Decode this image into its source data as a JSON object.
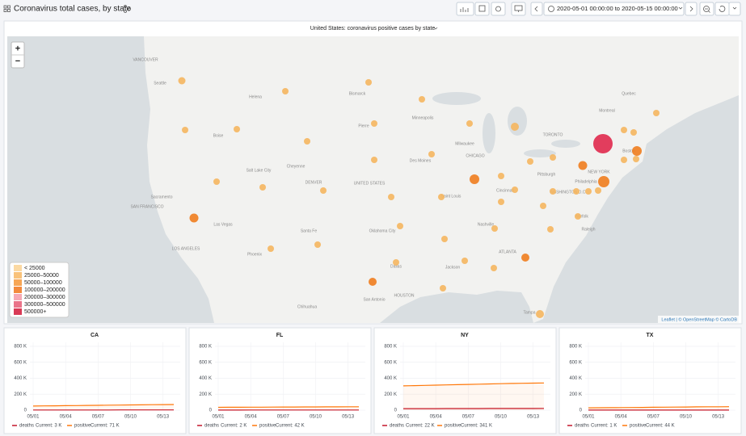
{
  "header": {
    "title": "Coronavirus total cases, by state",
    "time_range": "2020-05-01 00:00:00 to 2020-05-15 00:00:00"
  },
  "map": {
    "title": "United States: coronavirus positive cases by state",
    "zoom_in": "+",
    "zoom_out": "−",
    "attribution": "Leaflet | © OpenStreetMap © CartoDB",
    "labels": [
      "VANCOUVER",
      "Seattle",
      "Helena",
      "Bismarck",
      "Pierre",
      "Minneapolis",
      "Boise",
      "Salt Lake City",
      "Cheyenne",
      "DENVER",
      "UNITED STATES",
      "Des Moines",
      "Milwaukee",
      "CHICAGO",
      "TORONTO",
      "Montreal",
      "Quebec",
      "Boston",
      "NEW YORK",
      "Philadelphia",
      "Pittsburgh",
      "WASHINGTON D.C.",
      "Cincinnati",
      "Saint Louis",
      "Sacramento",
      "SAN FRANCISCO",
      "Las Vegas",
      "LOS ANGELES",
      "Santa Fe",
      "Oklahoma City",
      "Nashville",
      "Norfolk",
      "Raleigh",
      "ATLANTA",
      "Phoenix",
      "Dallas",
      "Jackson",
      "HOUSTON",
      "San Antonio",
      "Chihuahua",
      "Tampa"
    ],
    "legend": [
      {
        "label": "< 25000",
        "color": "#fbd9a3"
      },
      {
        "label": "25000–50000",
        "color": "#f9c27a"
      },
      {
        "label": "50000–100000",
        "color": "#f7a655"
      },
      {
        "label": "100000–200000",
        "color": "#f38a3d"
      },
      {
        "label": "200000–300000",
        "color": "#f6a9b5"
      },
      {
        "label": "300000–500000",
        "color": "#ea7389"
      },
      {
        "label": "500000+",
        "color": "#d93a55"
      }
    ]
  },
  "chart_data": [
    {
      "type": "line",
      "title": "CA",
      "x": [
        "05/01",
        "05/02",
        "05/03",
        "05/04",
        "05/05",
        "05/06",
        "05/07",
        "05/08",
        "05/09",
        "05/10",
        "05/11",
        "05/12",
        "05/13",
        "05/14"
      ],
      "xticks": [
        "05/01",
        "05/04",
        "05/07",
        "05/10",
        "05/13"
      ],
      "ylim": [
        0,
        850000
      ],
      "yticks": [
        0,
        {
          "value": 200000,
          "label": "200 K"
        },
        {
          "value": 400000,
          "label": "400 K"
        },
        {
          "value": 600000,
          "label": "600 K"
        },
        {
          "value": 800000,
          "label": "800 K"
        }
      ],
      "series": [
        {
          "name": "deaths",
          "color": "#c4162a",
          "current": "Current: 3 K",
          "values": [
            2000,
            2070,
            2150,
            2220,
            2290,
            2350,
            2420,
            2500,
            2600,
            2660,
            2720,
            2800,
            2900,
            3000
          ]
        },
        {
          "name": "positive",
          "color": "#ff780a",
          "current": "Current: 71 K",
          "values": [
            52000,
            53500,
            55000,
            56500,
            58000,
            59500,
            61000,
            62500,
            64000,
            65500,
            67000,
            68500,
            70000,
            71000
          ]
        }
      ]
    },
    {
      "type": "line",
      "title": "FL",
      "x": [
        "05/01",
        "05/02",
        "05/03",
        "05/04",
        "05/05",
        "05/06",
        "05/07",
        "05/08",
        "05/09",
        "05/10",
        "05/11",
        "05/12",
        "05/13",
        "05/14"
      ],
      "xticks": [
        "05/01",
        "05/04",
        "05/07",
        "05/10",
        "05/13"
      ],
      "ylim": [
        0,
        850000
      ],
      "yticks": [
        0,
        {
          "value": 200000,
          "label": "200 K"
        },
        {
          "value": 400000,
          "label": "400 K"
        },
        {
          "value": 600000,
          "label": "600 K"
        },
        {
          "value": 800000,
          "label": "800 K"
        }
      ],
      "series": [
        {
          "name": "deaths",
          "color": "#c4162a",
          "current": "Current: 2 K",
          "values": [
            1400,
            1450,
            1500,
            1550,
            1600,
            1650,
            1700,
            1750,
            1780,
            1820,
            1850,
            1880,
            1920,
            1950
          ]
        },
        {
          "name": "positive",
          "color": "#ff780a",
          "current": "Current: 42 K",
          "values": [
            35000,
            36000,
            36900,
            37400,
            37900,
            38800,
            39200,
            39800,
            40600,
            40900,
            41100,
            41600,
            42000,
            42200
          ]
        }
      ]
    },
    {
      "type": "line",
      "title": "NY",
      "x": [
        "05/01",
        "05/02",
        "05/03",
        "05/04",
        "05/05",
        "05/06",
        "05/07",
        "05/08",
        "05/09",
        "05/10",
        "05/11",
        "05/12",
        "05/13",
        "05/14"
      ],
      "xticks": [
        "05/01",
        "05/04",
        "05/07",
        "05/10",
        "05/13"
      ],
      "ylim": [
        0,
        850000
      ],
      "yticks": [
        0,
        {
          "value": 200000,
          "label": "200 K"
        },
        {
          "value": 400000,
          "label": "400 K"
        },
        {
          "value": 600000,
          "label": "600 K"
        },
        {
          "value": 800000,
          "label": "800 K"
        }
      ],
      "series": [
        {
          "name": "deaths",
          "color": "#c4162a",
          "current": "Current: 22 K",
          "values": [
            19000,
            19200,
            19400,
            19600,
            19900,
            20100,
            20400,
            20600,
            20800,
            21000,
            21200,
            21400,
            21600,
            21800
          ]
        },
        {
          "name": "positive",
          "color": "#ff780a",
          "current": "Current: 341 K",
          "values": [
            305000,
            308000,
            311000,
            314000,
            317000,
            320000,
            323000,
            326000,
            329000,
            332000,
            335000,
            337000,
            339000,
            341000
          ]
        }
      ]
    },
    {
      "type": "line",
      "title": "TX",
      "x": [
        "05/01",
        "05/02",
        "05/03",
        "05/04",
        "05/05",
        "05/06",
        "05/07",
        "05/08",
        "05/09",
        "05/10",
        "05/11",
        "05/12",
        "05/13",
        "05/14"
      ],
      "xticks": [
        "05/01",
        "05/04",
        "05/07",
        "05/10",
        "05/13"
      ],
      "ylim": [
        0,
        850000
      ],
      "yticks": [
        0,
        {
          "value": 200000,
          "label": "200 K"
        },
        {
          "value": 400000,
          "label": "400 K"
        },
        {
          "value": 600000,
          "label": "600 K"
        },
        {
          "value": 800000,
          "label": "800 K"
        }
      ],
      "series": [
        {
          "name": "deaths",
          "color": "#c4162a",
          "current": "Current: 1 K",
          "values": [
            800,
            820,
            850,
            870,
            900,
            930,
            950,
            970,
            1000,
            1020,
            1050,
            1070,
            1090,
            1100
          ]
        },
        {
          "name": "positive",
          "color": "#ff780a",
          "current": "Current: 44 K",
          "values": [
            29000,
            30500,
            31500,
            32500,
            33500,
            34500,
            36000,
            37000,
            38500,
            39500,
            41000,
            42000,
            43000,
            44000
          ]
        }
      ]
    }
  ]
}
